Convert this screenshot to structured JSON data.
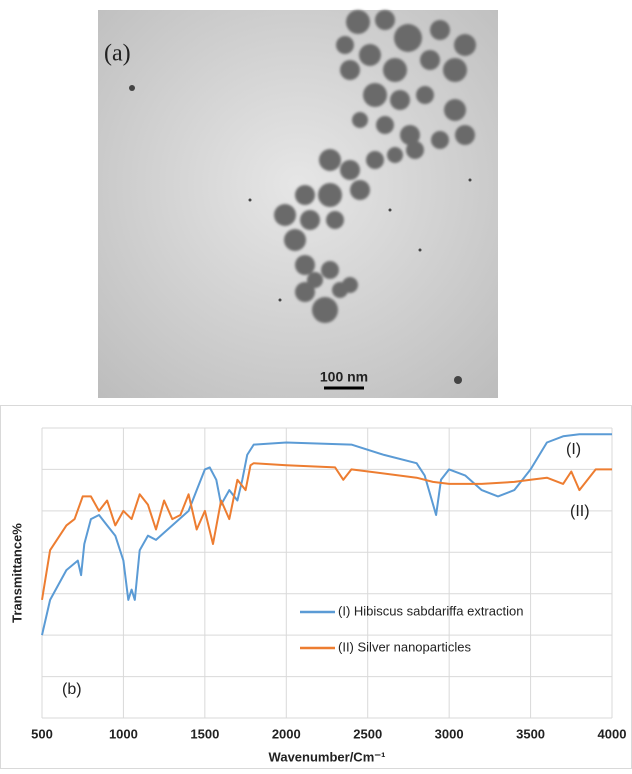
{
  "panel_a": {
    "label": "(a)",
    "scale_bar": "100 nm"
  },
  "chart_data": {
    "type": "line",
    "panel_label": "(b)",
    "x_label": "Wavenumber/Cm⁻¹",
    "y_label": "Transmittance%",
    "xlim": [
      500,
      4000
    ],
    "xticks": [
      500,
      1000,
      1500,
      2000,
      2500,
      3000,
      3500,
      4000
    ],
    "ylim": [
      0,
      7
    ],
    "yticks": [
      0,
      1,
      2,
      3,
      4,
      5,
      6,
      7
    ],
    "grid": true,
    "legend": "lower right",
    "annotations": [
      "(I)",
      "(II)"
    ],
    "series": [
      {
        "name": "(I) Hibiscus sabdariffa extraction",
        "color": "#5b9bd5",
        "x": [
          500,
          550,
          650,
          720,
          740,
          760,
          800,
          850,
          900,
          950,
          1000,
          1030,
          1050,
          1070,
          1100,
          1150,
          1200,
          1300,
          1400,
          1450,
          1500,
          1530,
          1570,
          1600,
          1650,
          1700,
          1730,
          1760,
          1800,
          2000,
          2400,
          2600,
          2800,
          2850,
          2920,
          2950,
          3000,
          3100,
          3200,
          3300,
          3400,
          3500,
          3600,
          3700,
          3800,
          4000
        ],
        "values": [
          2.0,
          2.85,
          3.57,
          3.8,
          3.45,
          4.2,
          4.8,
          4.9,
          4.65,
          4.4,
          3.8,
          2.85,
          3.1,
          2.85,
          4.05,
          4.4,
          4.3,
          4.65,
          5.0,
          5.5,
          6.0,
          6.05,
          5.75,
          5.15,
          5.5,
          5.25,
          5.75,
          6.35,
          6.6,
          6.65,
          6.6,
          6.35,
          6.15,
          5.85,
          4.9,
          5.75,
          6.0,
          5.85,
          5.5,
          5.35,
          5.5,
          6.0,
          6.65,
          6.8,
          6.85,
          6.85
        ]
      },
      {
        "name": "(II) Silver nanoparticles",
        "color": "#ed7d31",
        "x": [
          500,
          550,
          650,
          700,
          750,
          800,
          850,
          900,
          950,
          1000,
          1050,
          1100,
          1150,
          1200,
          1250,
          1300,
          1350,
          1400,
          1450,
          1500,
          1550,
          1600,
          1650,
          1700,
          1750,
          1780,
          1800,
          2000,
          2300,
          2350,
          2400,
          2800,
          2900,
          3000,
          3200,
          3400,
          3500,
          3600,
          3700,
          3750,
          3800,
          3900,
          4000
        ],
        "values": [
          2.85,
          4.05,
          4.65,
          4.8,
          5.35,
          5.35,
          5.0,
          5.25,
          4.65,
          5.0,
          4.8,
          5.4,
          5.15,
          4.55,
          5.25,
          4.8,
          4.9,
          5.4,
          4.55,
          5.0,
          4.2,
          5.25,
          4.8,
          5.75,
          5.5,
          6.1,
          6.15,
          6.1,
          6.05,
          5.75,
          6.0,
          5.8,
          5.7,
          5.65,
          5.65,
          5.7,
          5.75,
          5.8,
          5.65,
          5.95,
          5.5,
          6.0,
          6.0
        ]
      }
    ]
  }
}
